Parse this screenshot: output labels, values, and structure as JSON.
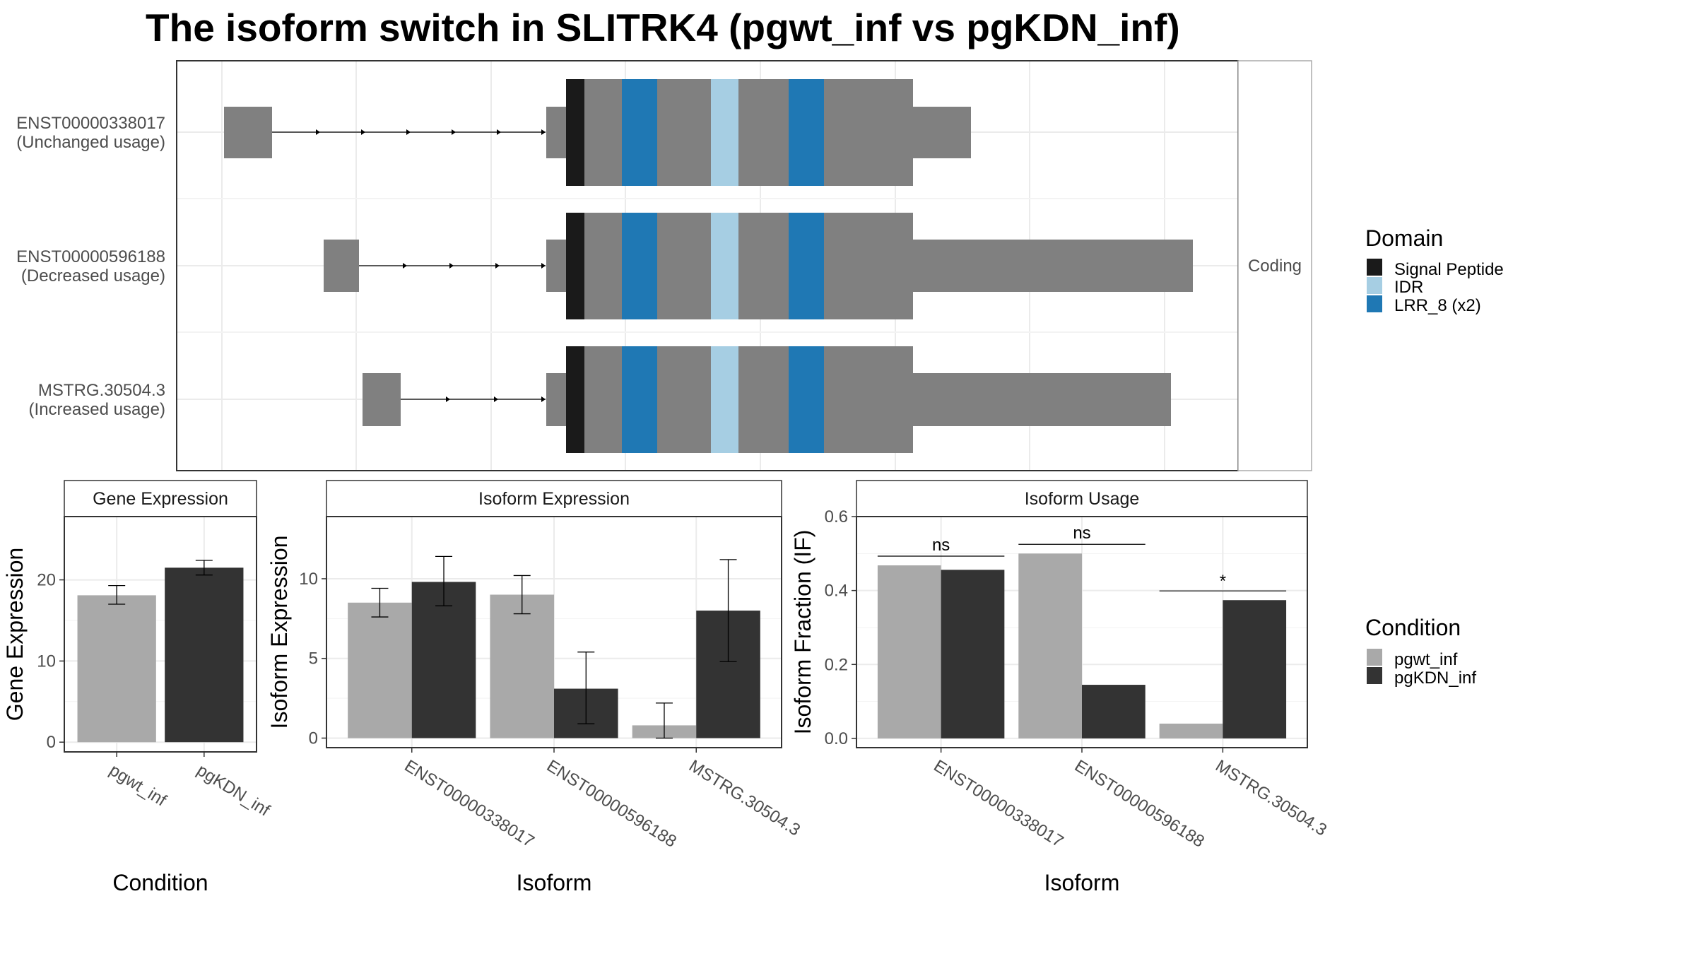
{
  "title": "The isoform switch in SLITRK4 (pgwt_inf vs pgKDN_inf)",
  "colors": {
    "signal_peptide": "#1a1a1a",
    "idr": "#a6cee3",
    "lrr": "#1f78b4",
    "exon": "#808080",
    "pgwt_inf": "#a9a9a9",
    "pgKDN_inf": "#333333"
  },
  "structure_panel": {
    "strip_label": "Coding",
    "isoforms": [
      {
        "id": "ENST00000338017",
        "note": "(Unchanged usage)"
      },
      {
        "id": "ENST00000596188",
        "note": "(Decreased usage)"
      },
      {
        "id": "MSTRG.30504.3",
        "note": "(Increased usage)"
      }
    ]
  },
  "legend_domain": {
    "title": "Domain",
    "items": [
      "Signal Peptide",
      "IDR",
      "LRR_8 (x2)"
    ]
  },
  "legend_condition": {
    "title": "Condition",
    "items": [
      "pgwt_inf",
      "pgKDN_inf"
    ]
  },
  "chart_data": [
    {
      "type": "bar",
      "strip": "Gene Expression",
      "xlabel": "Condition",
      "ylabel": "Gene Expression",
      "ylim": [
        -1.2,
        27.8
      ],
      "yticks": [
        "0",
        "10",
        "20"
      ],
      "categories": [
        "pgwt_inf",
        "pgKDN_inf"
      ],
      "values": [
        18.1,
        21.5
      ],
      "error": [
        [
          17.0,
          19.3
        ],
        [
          20.6,
          22.4
        ]
      ]
    },
    {
      "type": "bar",
      "strip": "Isoform Expression",
      "xlabel": "Isoform",
      "ylabel": "Isoform Expression",
      "ylim": [
        -0.6,
        13.9
      ],
      "yticks": [
        "0",
        "5",
        "10"
      ],
      "categories": [
        "ENST00000338017",
        "ENST00000596188",
        "MSTRG.30504.3"
      ],
      "series": [
        {
          "name": "pgwt_inf",
          "values": [
            8.5,
            9.0,
            0.8
          ],
          "error": [
            [
              7.6,
              9.4
            ],
            [
              7.8,
              10.2
            ],
            [
              0.0,
              2.2
            ]
          ]
        },
        {
          "name": "pgKDN_inf",
          "values": [
            9.8,
            3.1,
            8.0
          ],
          "error": [
            [
              8.3,
              11.4
            ],
            [
              0.9,
              5.4
            ],
            [
              4.8,
              11.2
            ]
          ]
        }
      ]
    },
    {
      "type": "bar",
      "strip": "Isoform Usage",
      "xlabel": "Isoform",
      "ylabel": "Isoform Fraction (IF)",
      "ylim": [
        -0.025,
        0.6
      ],
      "yticks": [
        "0.0",
        "0.2",
        "0.4",
        "0.6"
      ],
      "categories": [
        "ENST00000338017",
        "ENST00000596188",
        "MSTRG.30504.3"
      ],
      "series": [
        {
          "name": "pgwt_inf",
          "values": [
            0.468,
            0.5,
            0.04
          ]
        },
        {
          "name": "pgKDN_inf",
          "values": [
            0.456,
            0.145,
            0.374
          ]
        }
      ],
      "significance": [
        "ns",
        "ns",
        "*"
      ]
    }
  ]
}
